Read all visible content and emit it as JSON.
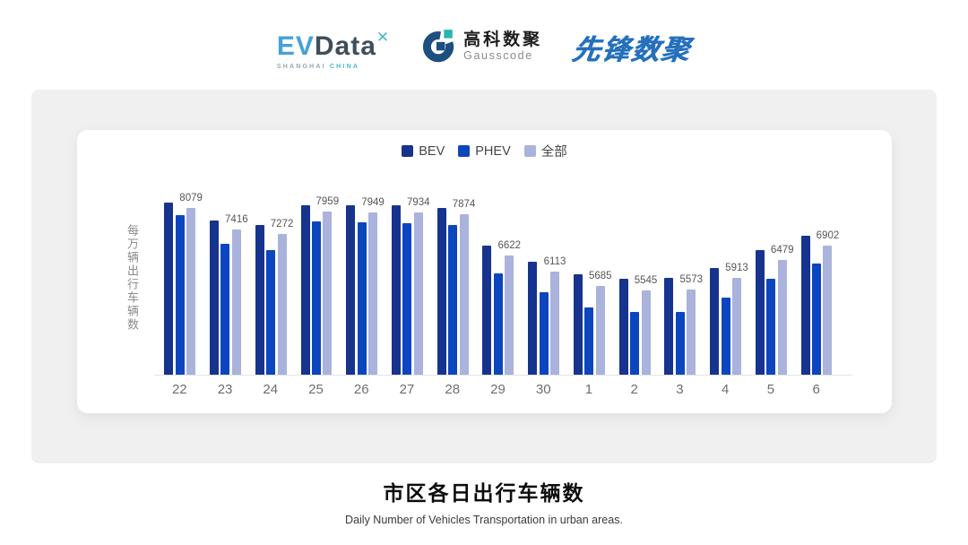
{
  "header": {
    "evdata": {
      "ev": "EV",
      "data": "Data",
      "superscript": "✕",
      "sub1": "SHANGHAI",
      "sub2": "CHINA"
    },
    "gausscode": {
      "cn": "高科数聚",
      "en": "Gausscode"
    },
    "pioneer": {
      "cn": "先锋数聚"
    }
  },
  "chart_data": {
    "type": "bar",
    "title": "市区各日出行车辆数",
    "subtitle": "Daily Number of Vehicles Transportation in urban areas.",
    "ylabel": "每万辆出行车辆数",
    "xlabel": "",
    "categories": [
      "22",
      "23",
      "24",
      "25",
      "26",
      "27",
      "28",
      "29",
      "30",
      "1",
      "2",
      "3",
      "4",
      "5",
      "6"
    ],
    "series": [
      {
        "name": "BEV",
        "color": "#16338E",
        "estimated_from_pixels": true,
        "values": [
          8250,
          7690,
          7560,
          8170,
          8150,
          8150,
          8060,
          6910,
          6420,
          6040,
          5890,
          5920,
          6220,
          6780,
          7210
        ]
      },
      {
        "name": "PHEV",
        "color": "#0C46BE",
        "estimated_from_pixels": true,
        "values": [
          7850,
          6980,
          6770,
          7650,
          7640,
          7600,
          7560,
          6060,
          5480,
          5000,
          4880,
          4880,
          5310,
          5900,
          6350
        ]
      },
      {
        "name": "全部",
        "color": "#A9B3DC",
        "labeled": true,
        "values": [
          8079,
          7416,
          7272,
          7959,
          7949,
          7934,
          7874,
          6622,
          6113,
          5685,
          5545,
          5573,
          5913,
          6479,
          6902
        ]
      }
    ],
    "data_labels": {
      "on_series": "全部",
      "values": [
        8079,
        7416,
        7272,
        7959,
        7949,
        7934,
        7874,
        6622,
        6113,
        5685,
        5545,
        5573,
        5913,
        6479,
        6902
      ]
    },
    "legend": {
      "position": "top",
      "items": [
        "BEV",
        "PHEV",
        "全部"
      ]
    },
    "grid": false,
    "y_axis_ticks_visible": false,
    "ylim_render_hint": [
      2940,
      8450
    ]
  },
  "footer": {
    "title": "市区各日出行车辆数",
    "subtitle": "Daily Number of Vehicles Transportation in urban areas."
  }
}
